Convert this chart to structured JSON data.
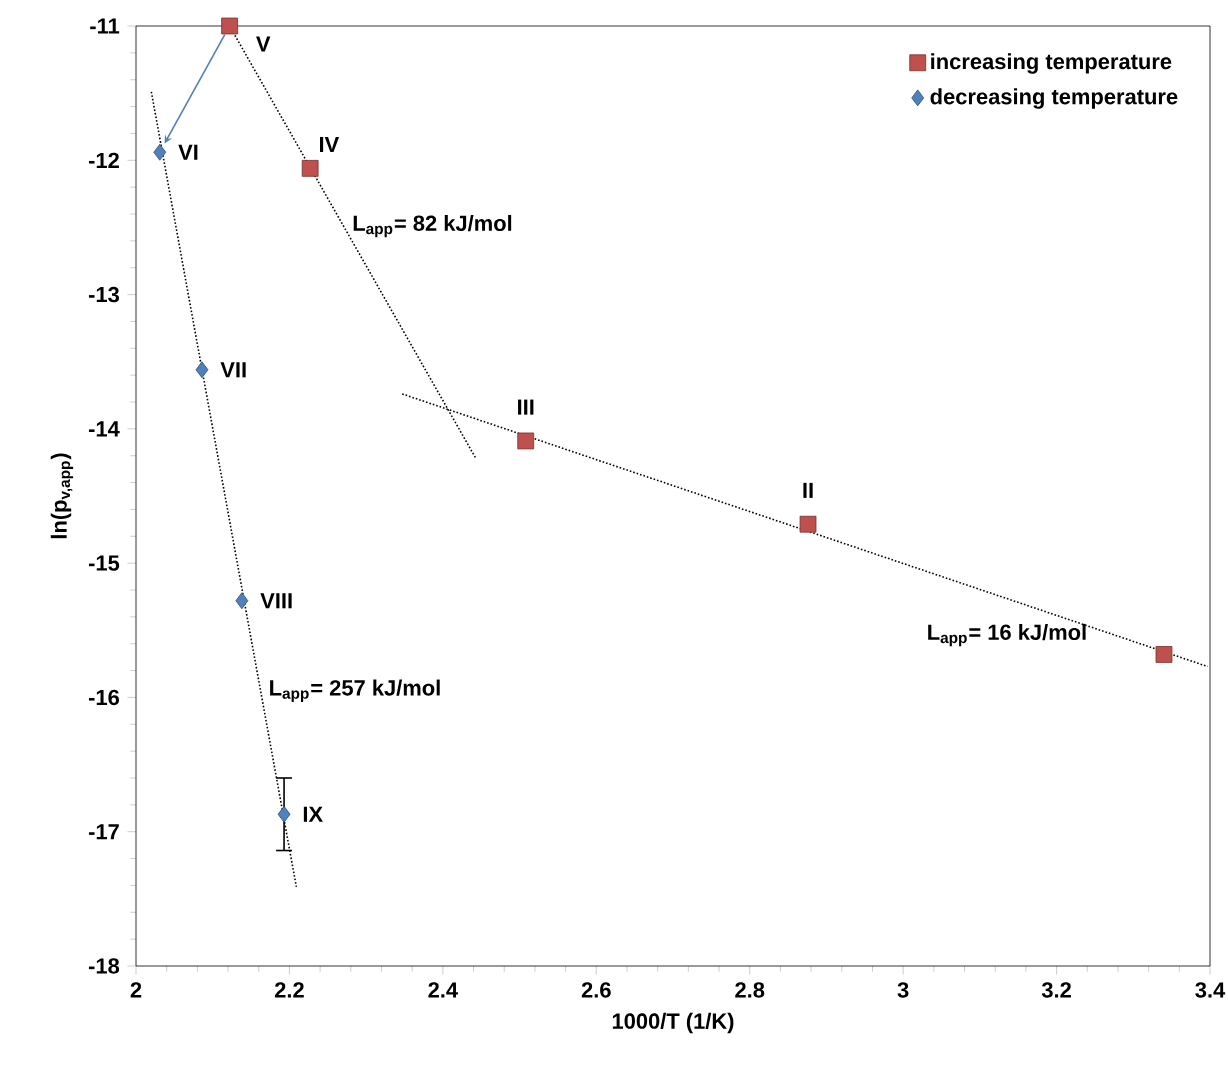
{
  "chart_data": {
    "type": "scatter",
    "xlabel": "1000/T (1/K)",
    "ylabel": "ln(p$_{v,app}$)",
    "xlim": [
      2,
      3.4
    ],
    "xticks": [
      2,
      2.2,
      2.4,
      2.6,
      2.8,
      3,
      3.2,
      3.4
    ],
    "ylim": [
      -18,
      -11
    ],
    "yticks": [
      -18,
      -17,
      -16,
      -15,
      -14,
      -13,
      -12,
      -11
    ],
    "grid": false,
    "legend": "top right",
    "series": [
      {
        "name": "increasing temperature",
        "color": "#c0504d",
        "marker": "square",
        "x": [
          3.34,
          2.876,
          2.508,
          2.227,
          2.122
        ],
        "values": [
          -15.68,
          -14.71,
          -14.09,
          -12.06,
          -11.0
        ]
      },
      {
        "name": "decreasing temperature",
        "color": "#4f81bd",
        "marker": "diamond",
        "x": [
          2.031,
          2.086,
          2.138,
          2.193
        ],
        "values": [
          -11.94,
          -13.56,
          -15.28,
          -16.87
        ],
        "errors": [
          null,
          null,
          null,
          0.27
        ]
      },
      {
        "type": "line",
        "color": "#000000",
        "line_style": "dotted",
        "x": [
          2.02,
          2.209
        ],
        "values": [
          -11.49,
          -17.41
        ]
      },
      {
        "type": "line",
        "color": "#000000",
        "line_style": "dotted",
        "x": [
          2.122,
          2.443
        ],
        "values": [
          -11.0,
          -14.22
        ]
      },
      {
        "type": "line",
        "color": "#000000",
        "line_style": "dotted",
        "x": [
          2.347,
          3.397
        ],
        "values": [
          -13.74,
          -15.77
        ]
      }
    ],
    "annotations": [
      {
        "text": "V",
        "x": 2.122,
        "y": -11.0
      },
      {
        "text": "IV",
        "x": 2.227,
        "y": -12.06
      },
      {
        "text": "III",
        "x": 2.508,
        "y": -14.09
      },
      {
        "text": "II",
        "x": 2.876,
        "y": -14.71
      },
      {
        "text": "VI",
        "x": 2.031,
        "y": -11.94
      },
      {
        "text": "VII",
        "x": 2.086,
        "y": -13.56
      },
      {
        "text": "VIII",
        "x": 2.138,
        "y": -15.28
      },
      {
        "text": "IX",
        "x": 2.193,
        "y": -16.87
      },
      {
        "text": "L$_{app}$= 82 kJ/mol",
        "x": 2.271,
        "y": -12.49
      },
      {
        "text": "L$_{app}$= 257 kJ/mol",
        "x": 2.162,
        "y": -15.95
      },
      {
        "text": "L$_{app}$= 16 kJ/mol",
        "x": 3.243,
        "y": -15.39
      }
    ]
  }
}
